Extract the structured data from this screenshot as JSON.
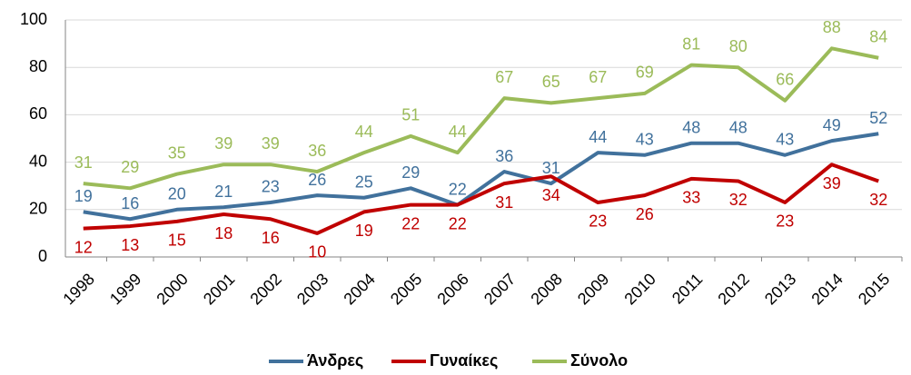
{
  "chart_data": {
    "type": "line",
    "categories": [
      "1998",
      "1999",
      "2000",
      "2001",
      "2002",
      "2003",
      "2004",
      "2005",
      "2006",
      "2007",
      "2008",
      "2009",
      "2010",
      "2011",
      "2012",
      "2013",
      "2014",
      "2015"
    ],
    "series": [
      {
        "name": "Άνδρες",
        "color": "#41719c",
        "values": [
          19,
          16,
          20,
          21,
          23,
          26,
          25,
          29,
          22,
          36,
          31,
          44,
          43,
          48,
          48,
          43,
          49,
          52
        ]
      },
      {
        "name": "Γυναίκες",
        "color": "#c00000",
        "values": [
          12,
          13,
          15,
          18,
          16,
          10,
          19,
          22,
          22,
          31,
          34,
          23,
          26,
          33,
          32,
          23,
          39,
          32
        ]
      },
      {
        "name": "Σύνολο",
        "color": "#9bbb59",
        "values": [
          31,
          29,
          35,
          39,
          39,
          36,
          44,
          51,
          44,
          67,
          65,
          67,
          69,
          81,
          80,
          66,
          88,
          84
        ]
      }
    ],
    "ylim": [
      0,
      100
    ],
    "yticks": [
      0,
      20,
      40,
      60,
      80,
      100
    ],
    "grid": true,
    "legend": "bottom"
  }
}
